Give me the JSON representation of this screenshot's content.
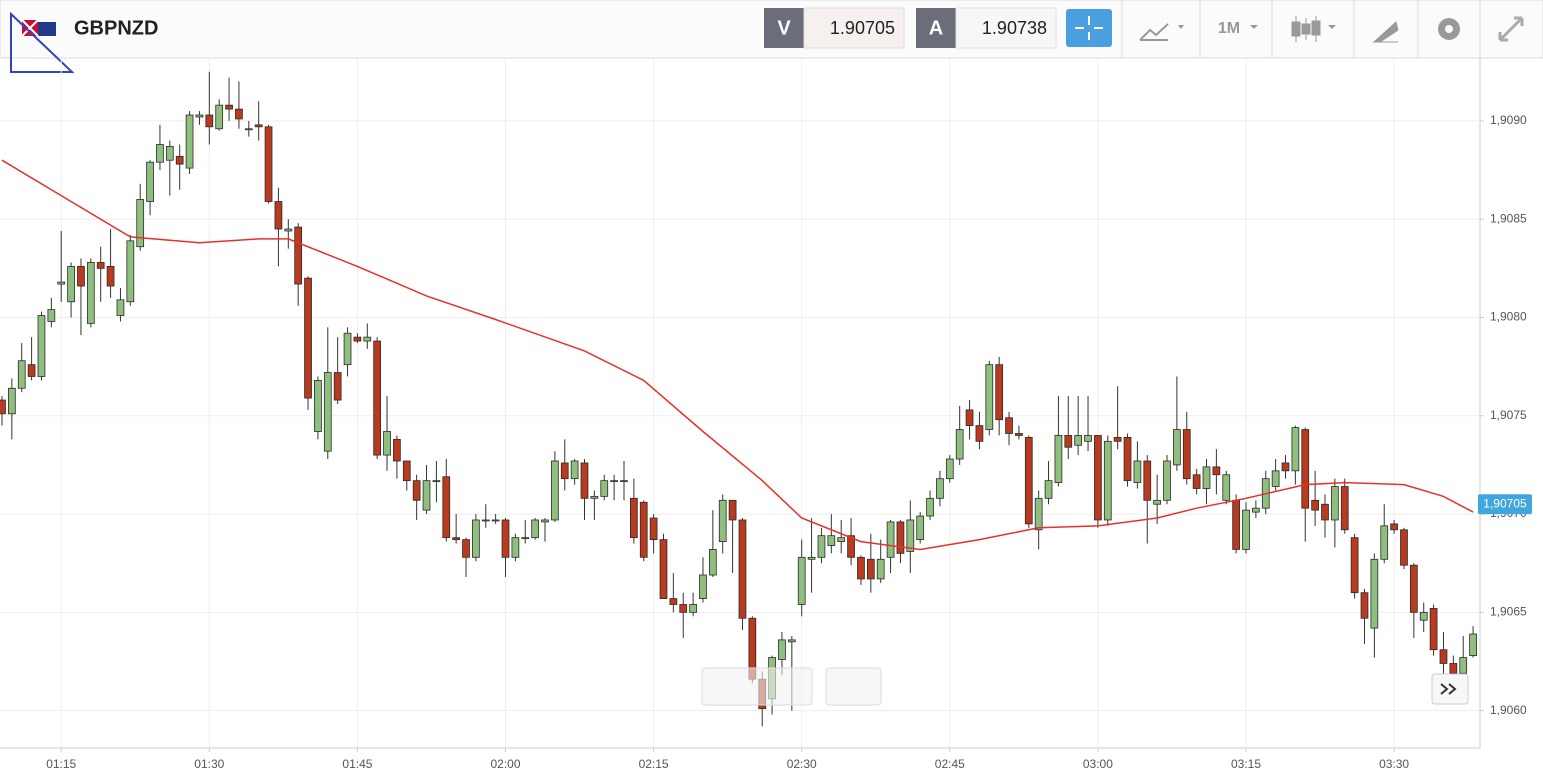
{
  "header": {
    "symbol": "GBPNZD",
    "bid_label": "V",
    "bid": "1.90705",
    "ask_label": "A",
    "ask": "1.90738",
    "timeframe": "1M"
  },
  "chart_data": {
    "type": "candlestick",
    "categories": [
      null,
      null,
      null,
      null,
      null,
      null,
      "01:15",
      null,
      null,
      null,
      null,
      null,
      null,
      null,
      null,
      null,
      null,
      null,
      null,
      null,
      null,
      "01:30",
      null,
      null,
      null,
      null,
      null,
      null,
      null,
      null,
      null,
      null,
      null,
      null,
      null,
      null,
      "01:45",
      null,
      null,
      null,
      null,
      null,
      null,
      null,
      null,
      null,
      null,
      null,
      null,
      null,
      null,
      "02:00",
      null,
      null,
      null,
      null,
      null,
      null,
      null,
      null,
      null,
      null,
      null,
      null,
      null,
      null,
      "02:15",
      null,
      null,
      null,
      null,
      null,
      null,
      null,
      null,
      null,
      null,
      null,
      null,
      null,
      null,
      "02:30",
      null,
      null,
      null,
      null,
      null,
      null,
      null,
      null,
      null,
      null,
      null,
      null,
      null,
      null,
      "02:45",
      null,
      null,
      null,
      null,
      null,
      null,
      null,
      null,
      null,
      null,
      null,
      null,
      null,
      null,
      "03:00",
      null,
      null,
      null,
      null,
      null,
      null,
      null,
      null,
      null,
      null,
      null,
      null,
      null,
      null,
      "03:15",
      null,
      null,
      null,
      null,
      null,
      null,
      null,
      null,
      null,
      null,
      null,
      null,
      null,
      null,
      "03:30",
      null,
      null,
      null,
      null,
      null,
      null,
      null,
      null
    ],
    "open": [
      1.90758,
      1.90751,
      1.90764,
      1.90776,
      1.9077,
      1.90798,
      1.90817,
      1.90808,
      1.90826,
      1.90797,
      1.90828,
      1.90826,
      1.90801,
      1.90808,
      1.90836,
      1.90859,
      1.90879,
      1.9088,
      1.90882,
      1.90876,
      1.90902,
      1.90903,
      1.90896,
      1.90908,
      1.90906,
      1.90896,
      1.90898,
      1.90897,
      1.90859,
      1.90844,
      1.90846,
      1.9082,
      1.90742,
      1.90732,
      1.90772,
      1.90776,
      1.9079,
      1.90788,
      1.90788,
      1.9073,
      1.90738,
      1.90727,
      1.90717,
      1.90702,
      1.90717,
      1.90719,
      1.90688,
      1.90687,
      1.90678,
      1.90697,
      1.90697,
      1.90697,
      1.90678,
      1.90688,
      1.90688,
      1.90696,
      1.90697,
      1.90726,
      1.90718,
      1.90726,
      1.90708,
      1.90709,
      1.90717,
      1.90717,
      1.90708,
      1.90706,
      1.90698,
      1.90687,
      1.90657,
      1.90654,
      1.9065,
      1.90657,
      1.90669,
      1.90686,
      1.90707,
      1.90697,
      1.90647,
      1.90616,
      1.90606,
      1.90626,
      1.90635,
      1.90654,
      1.90677,
      1.90678,
      1.90684,
      1.90686,
      1.90689,
      1.90678,
      1.90677,
      1.90667,
      1.90678,
      1.90696,
      1.90681,
      1.90687,
      1.90699,
      1.90708,
      1.90718,
      1.90728,
      1.90753,
      1.90745,
      1.90743,
      1.90776,
      1.90749,
      1.90741,
      1.90739,
      1.90692,
      1.90708,
      1.90716,
      1.9074,
      1.90735,
      1.90737,
      1.9074,
      1.90697,
      1.90739,
      1.90739,
      1.90716,
      1.90727,
      1.90705,
      1.90707,
      1.90725,
      1.90743,
      1.9072,
      1.90713,
      1.90724,
      1.90707,
      1.90707,
      1.90682,
      1.90701,
      1.90703,
      1.90714,
      1.90726,
      1.90722,
      1.90743,
      1.90707,
      1.90705,
      1.90697,
      1.90714,
      1.90688,
      1.9066,
      1.90642,
      1.90677,
      1.90695,
      1.90692,
      1.90674,
      1.90646,
      1.90652,
      1.90631,
      1.90624,
      1.90619,
      1.90628
    ],
    "high": [
      1.9076,
      1.90769,
      1.90787,
      1.9079,
      1.90803,
      1.9081,
      1.90844,
      1.90828,
      1.9083,
      1.9083,
      1.90836,
      1.90845,
      1.90815,
      1.90842,
      1.90868,
      1.9088,
      1.90898,
      1.9089,
      1.90888,
      1.90905,
      1.90905,
      1.90925,
      1.90911,
      1.90922,
      1.9092,
      1.909,
      1.9091,
      1.90898,
      1.90866,
      1.9085,
      1.90848,
      1.90821,
      1.9077,
      1.90795,
      1.9079,
      1.90795,
      1.90792,
      1.90797,
      1.9079,
      1.9076,
      1.9074,
      1.90727,
      1.9072,
      1.90725,
      1.90727,
      1.90728,
      1.907,
      1.90688,
      1.907,
      1.90705,
      1.907,
      1.90698,
      1.9069,
      1.90697,
      1.90698,
      1.90698,
      1.90732,
      1.90738,
      1.90728,
      1.90728,
      1.90712,
      1.9072,
      1.9072,
      1.90727,
      1.90718,
      1.90707,
      1.907,
      1.9069,
      1.9067,
      1.9066,
      1.9066,
      1.90678,
      1.90702,
      1.9071,
      1.90707,
      1.90698,
      1.90648,
      1.9062,
      1.90628,
      1.9064,
      1.90638,
      1.90687,
      1.90698,
      1.90693,
      1.907,
      1.90697,
      1.90698,
      1.90679,
      1.9069,
      1.90687,
      1.90697,
      1.90697,
      1.90707,
      1.90701,
      1.90712,
      1.90722,
      1.9073,
      1.90755,
      1.90758,
      1.90752,
      1.90778,
      1.9078,
      1.90752,
      1.90745,
      1.9074,
      1.90712,
      1.90727,
      1.9076,
      1.9076,
      1.9076,
      1.9076,
      1.9074,
      1.9074,
      1.90765,
      1.90741,
      1.90737,
      1.9073,
      1.9072,
      1.9073,
      1.9077,
      1.90752,
      1.90723,
      1.90728,
      1.90733,
      1.90722,
      1.9071,
      1.90706,
      1.90707,
      1.90722,
      1.90728,
      1.9073,
      1.90745,
      1.90744,
      1.90722,
      1.9071,
      1.90718,
      1.90718,
      1.9069,
      1.90662,
      1.9068,
      1.90705,
      1.90697,
      1.90693,
      1.90675,
      1.90655,
      1.90654,
      1.9064,
      1.90628,
      1.90638,
      1.90643
    ],
    "low": [
      1.90745,
      1.90738,
      1.90762,
      1.90768,
      1.90768,
      1.90795,
      1.90808,
      1.908,
      1.90791,
      1.90795,
      1.90808,
      1.9081,
      1.90798,
      1.90806,
      1.90834,
      1.90852,
      1.90875,
      1.90862,
      1.90865,
      1.90873,
      1.90898,
      1.90888,
      1.90895,
      1.909,
      1.90896,
      1.90892,
      1.9089,
      1.90858,
      1.90826,
      1.90835,
      1.90806,
      1.90753,
      1.90738,
      1.90728,
      1.90756,
      1.9077,
      1.90787,
      1.90784,
      1.90728,
      1.90722,
      1.90718,
      1.90712,
      1.90697,
      1.907,
      1.90706,
      1.90686,
      1.90685,
      1.90668,
      1.90676,
      1.90693,
      1.90695,
      1.90668,
      1.90676,
      1.90685,
      1.90687,
      1.90686,
      1.90696,
      1.90712,
      1.90715,
      1.90697,
      1.90697,
      1.90707,
      1.90707,
      1.90707,
      1.90685,
      1.90676,
      1.9068,
      1.90657,
      1.9065,
      1.90637,
      1.90648,
      1.90655,
      1.90668,
      1.9068,
      1.9067,
      1.90641,
      1.90614,
      1.90592,
      1.90598,
      1.90618,
      1.906,
      1.90648,
      1.9066,
      1.90675,
      1.9068,
      1.9068,
      1.90674,
      1.90664,
      1.9066,
      1.90665,
      1.9067,
      1.90675,
      1.9067,
      1.90685,
      1.90697,
      1.90704,
      1.90716,
      1.90725,
      1.90738,
      1.90733,
      1.9074,
      1.9074,
      1.90735,
      1.90738,
      1.90693,
      1.90682,
      1.90705,
      1.90714,
      1.90728,
      1.9073,
      1.90732,
      1.90693,
      1.90694,
      1.90733,
      1.90714,
      1.90713,
      1.90685,
      1.90695,
      1.90705,
      1.90722,
      1.90715,
      1.9071,
      1.90705,
      1.9071,
      1.90705,
      1.9068,
      1.9068,
      1.90698,
      1.907,
      1.90712,
      1.90718,
      1.90715,
      1.90686,
      1.90694,
      1.90688,
      1.90683,
      1.9069,
      1.90657,
      1.90634,
      1.90627,
      1.90675,
      1.9069,
      1.90672,
      1.90637,
      1.9064,
      1.90628,
      1.90618,
      1.90612,
      1.90615,
      1.90627
    ],
    "close": [
      1.90751,
      1.90764,
      1.90778,
      1.9077,
      1.90801,
      1.90804,
      1.90818,
      1.90826,
      1.90816,
      1.90828,
      1.90825,
      1.90816,
      1.90809,
      1.90839,
      1.9086,
      1.90879,
      1.90888,
      1.90887,
      1.90878,
      1.90903,
      1.90903,
      1.90897,
      1.90908,
      1.90906,
      1.90901,
      1.90896,
      1.90897,
      1.90859,
      1.90845,
      1.90845,
      1.90817,
      1.90759,
      1.90768,
      1.90772,
      1.90758,
      1.90792,
      1.90788,
      1.9079,
      1.9073,
      1.90742,
      1.90727,
      1.90717,
      1.90707,
      1.90717,
      1.90717,
      1.90688,
      1.90687,
      1.90678,
      1.90697,
      1.90697,
      1.90697,
      1.90678,
      1.90688,
      1.90688,
      1.90697,
      1.90697,
      1.90727,
      1.90718,
      1.90727,
      1.90708,
      1.90709,
      1.90717,
      1.90717,
      1.90717,
      1.90688,
      1.90678,
      1.90687,
      1.90657,
      1.90654,
      1.9065,
      1.90654,
      1.90669,
      1.90682,
      1.90707,
      1.90697,
      1.90647,
      1.90616,
      1.90601,
      1.90627,
      1.90636,
      1.90636,
      1.90678,
      1.90678,
      1.90689,
      1.90689,
      1.90688,
      1.90678,
      1.90667,
      1.90667,
      1.90677,
      1.90696,
      1.9068,
      1.90697,
      1.90699,
      1.90708,
      1.90718,
      1.90728,
      1.90743,
      1.90745,
      1.90737,
      1.90776,
      1.90748,
      1.90741,
      1.9074,
      1.90695,
      1.90708,
      1.90717,
      1.9074,
      1.90734,
      1.9074,
      1.9074,
      1.90697,
      1.90737,
      1.90737,
      1.90717,
      1.90727,
      1.90707,
      1.90707,
      1.90727,
      1.90743,
      1.90718,
      1.90713,
      1.90724,
      1.9072,
      1.9072,
      1.90682,
      1.90702,
      1.90703,
      1.90718,
      1.90722,
      1.90722,
      1.90744,
      1.90703,
      1.90702,
      1.90697,
      1.90714,
      1.90692,
      1.9066,
      1.90647,
      1.90677,
      1.90694,
      1.90692,
      1.90674,
      1.9065,
      1.9065,
      1.90631,
      1.90624,
      1.90619,
      1.90627,
      1.90639
    ],
    "up_color": "#8fbf7f",
    "down_color": "#b83a1f",
    "moving_average": {
      "color": "#e8302a",
      "x": [
        0,
        6,
        13,
        20,
        26,
        29,
        36,
        43,
        50,
        59,
        65,
        71,
        77,
        81,
        87,
        93,
        99,
        105,
        111,
        117,
        121,
        126,
        132,
        136,
        142,
        146,
        149
      ],
      "values": [
        1.9088,
        1.90862,
        1.90841,
        1.90838,
        1.9084,
        1.9084,
        1.90826,
        1.90811,
        1.90799,
        1.90783,
        1.90768,
        1.90742,
        1.90717,
        1.90698,
        1.90686,
        1.90682,
        1.90687,
        1.90693,
        1.90694,
        1.90698,
        1.90703,
        1.90708,
        1.90715,
        1.90716,
        1.90715,
        1.90709,
        1.90701
      ]
    },
    "price_label": {
      "value": 1.90705,
      "label": "1,90705",
      "color": "#3fa7dc"
    },
    "xlim": [
      -0.2,
      149.7
    ],
    "ylim": [
      1.90581,
      1.90932
    ],
    "yticks": [
      {
        "value": 1.906,
        "label": "1,9060"
      },
      {
        "value": 1.9065,
        "label": "1,9065"
      },
      {
        "value": 1.907,
        "label": "1,9070"
      },
      {
        "value": 1.9075,
        "label": "1,9075"
      },
      {
        "value": 1.908,
        "label": "1,9080"
      },
      {
        "value": 1.9085,
        "label": "1,9085"
      },
      {
        "value": 1.909,
        "label": "1,9090"
      }
    ],
    "grid": true
  }
}
